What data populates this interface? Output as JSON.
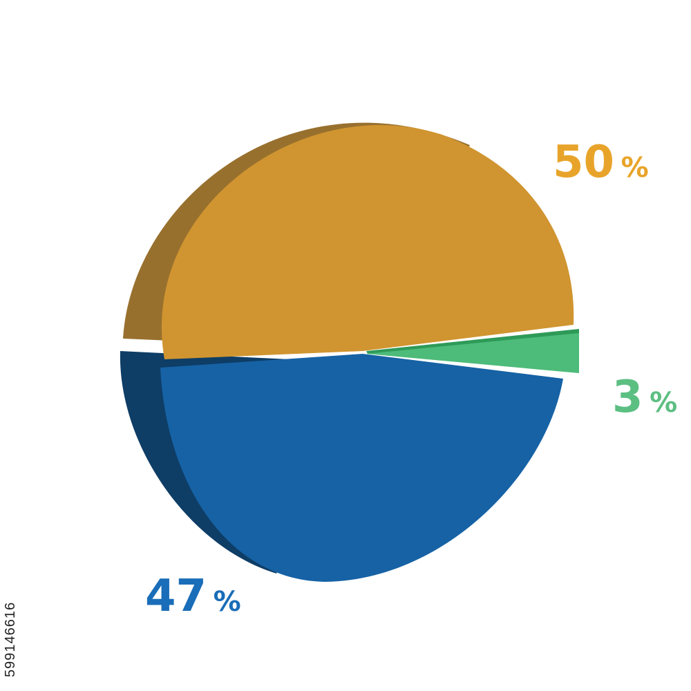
{
  "chart_data": {
    "type": "pie",
    "style": "3d-rotated",
    "title": "",
    "slices": [
      {
        "label": "50%",
        "value": 50,
        "color": "#D09530",
        "side_color": "#98702E",
        "label_color": "#E8A42A"
      },
      {
        "label": "3%",
        "value": 3,
        "color": "#4DBB7A",
        "side_color": "#2E9A58",
        "label_color": "#5CBF82"
      },
      {
        "label": "47%",
        "value": 47,
        "color": "#1662A5",
        "side_color": "#0E3D66",
        "label_color": "#1A6DB8"
      }
    ],
    "legend": "none"
  },
  "stock_id": "599146616"
}
